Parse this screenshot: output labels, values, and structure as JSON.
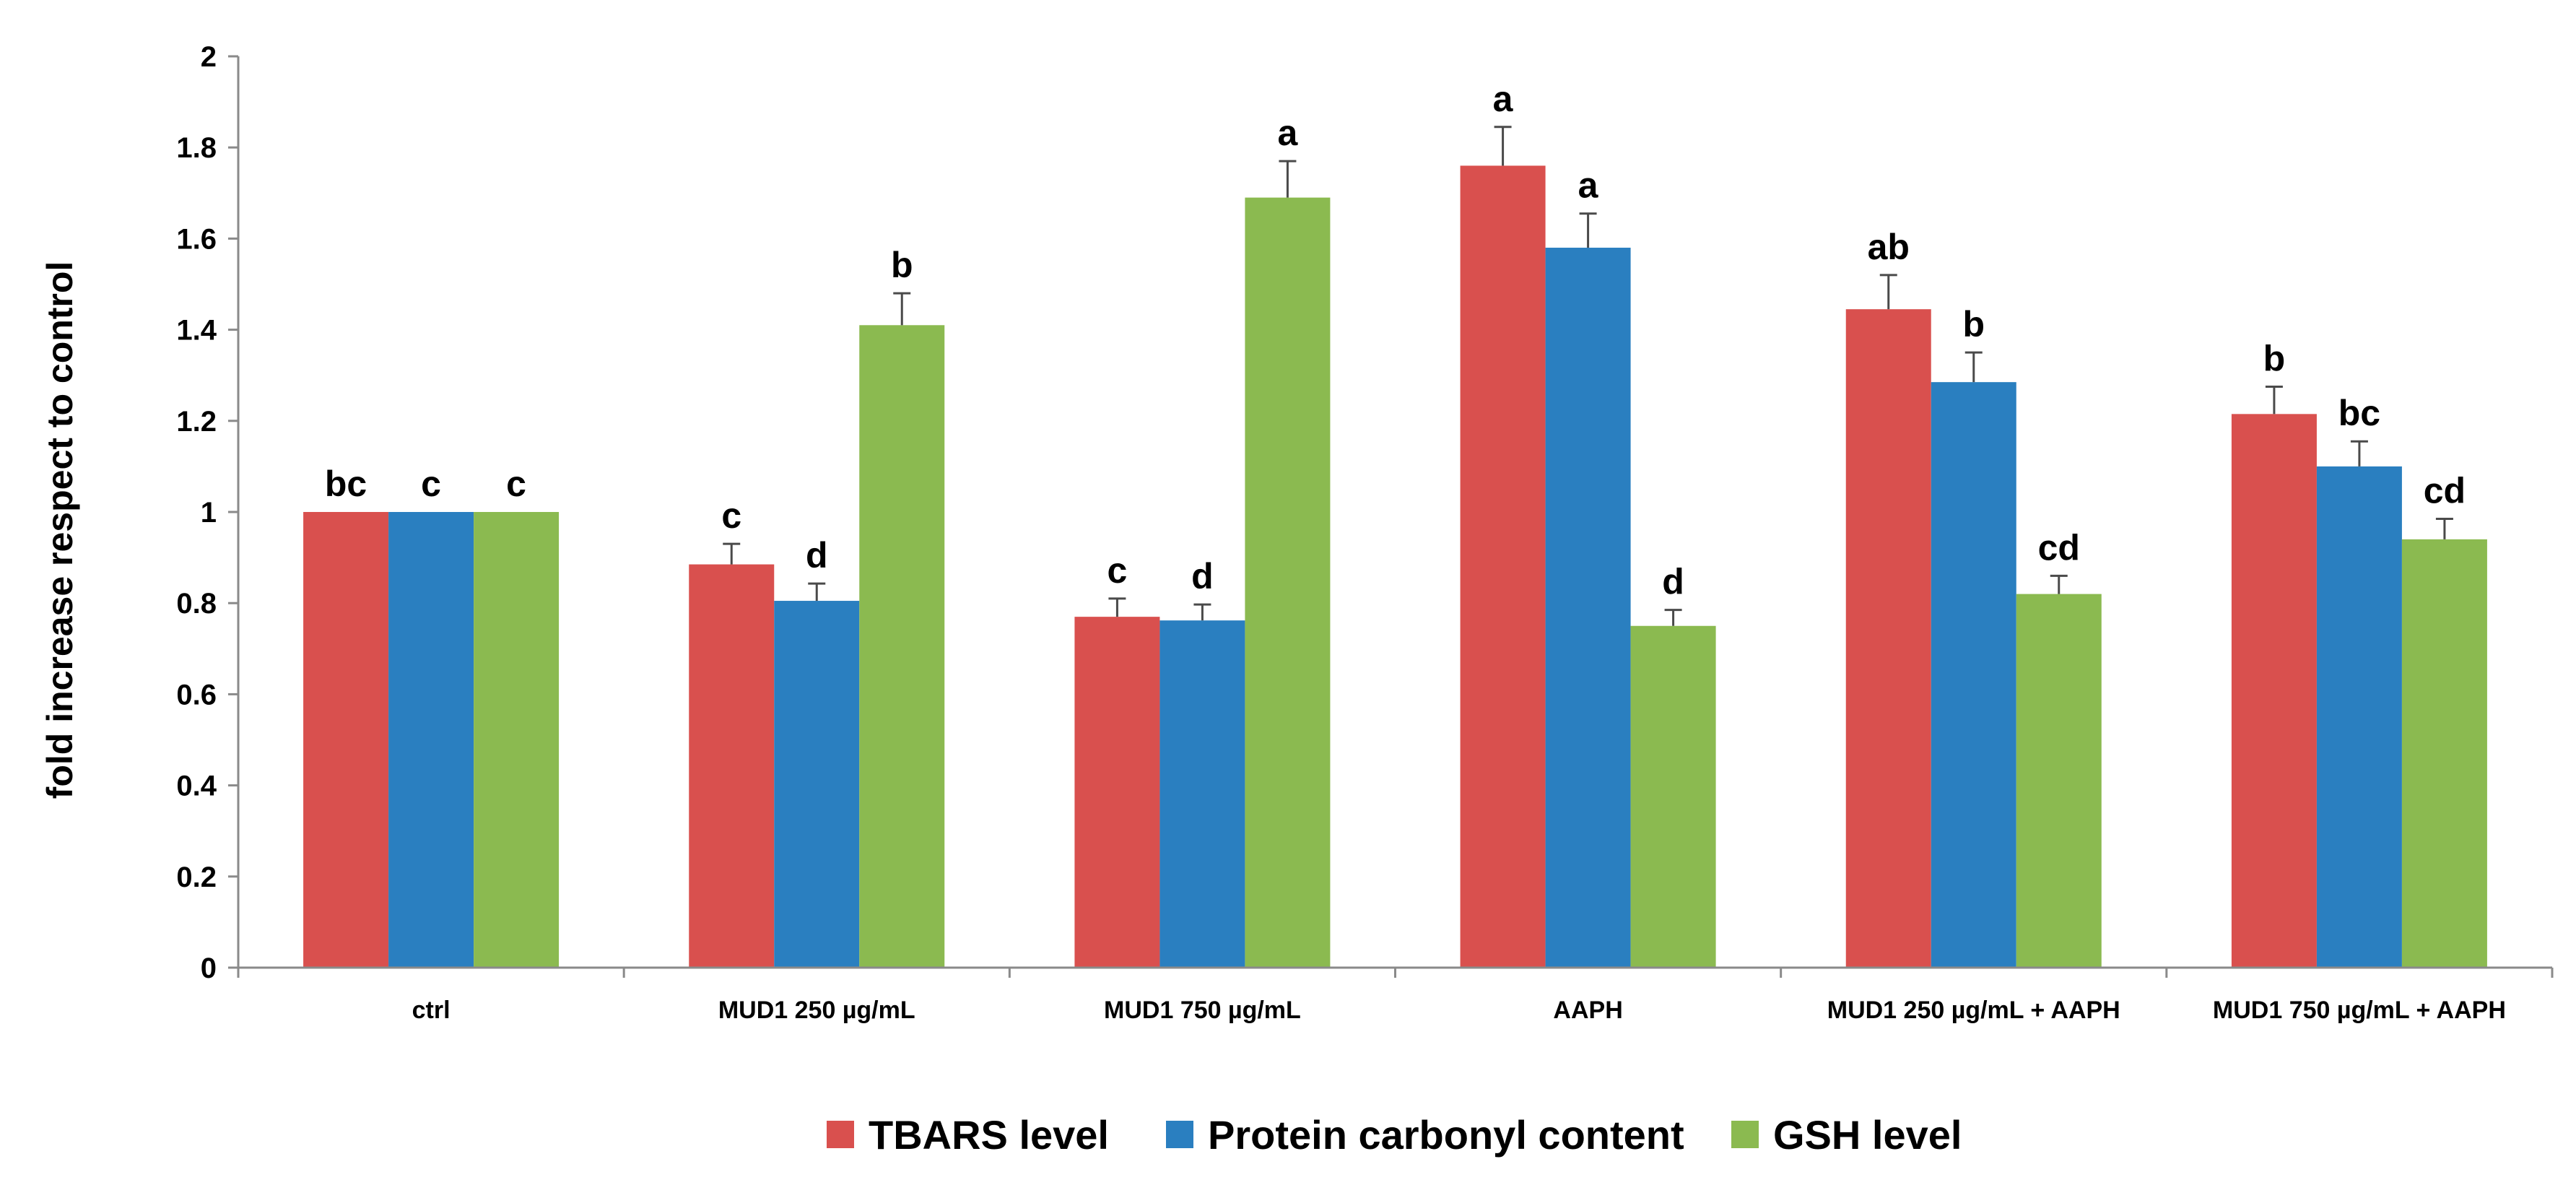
{
  "chart_data": {
    "type": "bar",
    "title": "",
    "xlabel": "",
    "ylabel": "fold increase respect to control",
    "ylim": [
      0,
      2
    ],
    "yticks": [
      "0",
      "0.2",
      "0.4",
      "0.6",
      "0.8",
      "1",
      "1.2",
      "1.4",
      "1.6",
      "1.8",
      "2"
    ],
    "grid": false,
    "legend_position": "bottom",
    "categories": [
      "ctrl",
      "MUD1 250 µg/mL",
      "MUD1 750 µg/mL",
      "AAPH",
      "MUD1 250 µg/mL + AAPH",
      "MUD1 750 µg/mL + AAPH"
    ],
    "series": [
      {
        "name": "TBARS level",
        "color": "#d9504e",
        "values": [
          1.0,
          0.885,
          0.77,
          1.76,
          1.445,
          1.215
        ],
        "errors": [
          0.0,
          0.045,
          0.04,
          0.085,
          0.075,
          0.06
        ],
        "labels": [
          "bc",
          "c",
          "c",
          "a",
          "ab",
          "b"
        ]
      },
      {
        "name": "Protein carbonyl content",
        "color": "#2a7fc0",
        "values": [
          1.0,
          0.805,
          0.762,
          1.58,
          1.285,
          1.1
        ],
        "errors": [
          0.0,
          0.038,
          0.035,
          0.075,
          0.065,
          0.055
        ],
        "labels": [
          "c",
          "d",
          "d",
          "a",
          "b",
          "bc"
        ]
      },
      {
        "name": "GSH level",
        "color": "#8bba50",
        "values": [
          1.0,
          1.41,
          1.69,
          0.75,
          0.82,
          0.94
        ],
        "errors": [
          0.0,
          0.07,
          0.08,
          0.035,
          0.04,
          0.045
        ],
        "labels": [
          "c",
          "b",
          "a",
          "d",
          "cd",
          "cd"
        ]
      }
    ]
  }
}
